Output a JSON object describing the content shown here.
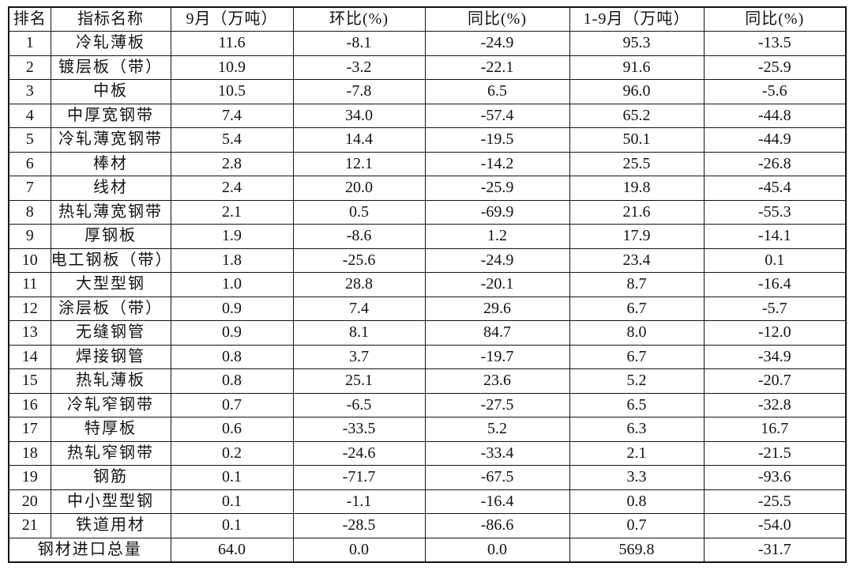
{
  "colors": {
    "background": "#ffffff",
    "border": "#141414",
    "text": "#131313"
  },
  "table": {
    "headers": [
      "排名",
      "指标名称",
      "9月（万吨）",
      "环比(%)",
      "同比(%)",
      "1-9月（万吨）",
      "同比(%)"
    ],
    "rows": [
      [
        "1",
        "冷轧薄板",
        "11.6",
        "-8.1",
        "-24.9",
        "95.3",
        "-13.5"
      ],
      [
        "2",
        "镀层板（带）",
        "10.9",
        "-3.2",
        "-22.1",
        "91.6",
        "-25.9"
      ],
      [
        "3",
        "中板",
        "10.5",
        "-7.8",
        "6.5",
        "96.0",
        "-5.6"
      ],
      [
        "4",
        "中厚宽钢带",
        "7.4",
        "34.0",
        "-57.4",
        "65.2",
        "-44.8"
      ],
      [
        "5",
        "冷轧薄宽钢带",
        "5.4",
        "14.4",
        "-19.5",
        "50.1",
        "-44.9"
      ],
      [
        "6",
        "棒材",
        "2.8",
        "12.1",
        "-14.2",
        "25.5",
        "-26.8"
      ],
      [
        "7",
        "线材",
        "2.4",
        "20.0",
        "-25.9",
        "19.8",
        "-45.4"
      ],
      [
        "8",
        "热轧薄宽钢带",
        "2.1",
        "0.5",
        "-69.9",
        "21.6",
        "-55.3"
      ],
      [
        "9",
        "厚钢板",
        "1.9",
        "-8.6",
        "1.2",
        "17.9",
        "-14.1"
      ],
      [
        "10",
        "电工钢板（带）",
        "1.8",
        "-25.6",
        "-24.9",
        "23.4",
        "0.1"
      ],
      [
        "11",
        "大型型钢",
        "1.0",
        "28.8",
        "-20.1",
        "8.7",
        "-16.4"
      ],
      [
        "12",
        "涂层板（带）",
        "0.9",
        "7.4",
        "29.6",
        "6.7",
        "-5.7"
      ],
      [
        "13",
        "无缝钢管",
        "0.9",
        "8.1",
        "84.7",
        "8.0",
        "-12.0"
      ],
      [
        "14",
        "焊接钢管",
        "0.8",
        "3.7",
        "-19.7",
        "6.7",
        "-34.9"
      ],
      [
        "15",
        "热轧薄板",
        "0.8",
        "25.1",
        "23.6",
        "5.2",
        "-20.7"
      ],
      [
        "16",
        "冷轧窄钢带",
        "0.7",
        "-6.5",
        "-27.5",
        "6.5",
        "-32.8"
      ],
      [
        "17",
        "特厚板",
        "0.6",
        "-33.5",
        "5.2",
        "6.3",
        "16.7"
      ],
      [
        "18",
        "热轧窄钢带",
        "0.2",
        "-24.6",
        "-33.4",
        "2.1",
        "-21.5"
      ],
      [
        "19",
        "钢筋",
        "0.1",
        "-71.7",
        "-67.5",
        "3.3",
        "-93.6"
      ],
      [
        "20",
        "中小型型钢",
        "0.1",
        "-1.1",
        "-16.4",
        "0.8",
        "-25.5"
      ],
      [
        "21",
        "铁道用材",
        "0.1",
        "-28.5",
        "-86.6",
        "0.7",
        "-54.0"
      ]
    ],
    "total_row": {
      "label": "钢材进口总量",
      "values": [
        "64.0",
        "0.0",
        "0.0",
        "569.8",
        "-31.7"
      ]
    }
  }
}
